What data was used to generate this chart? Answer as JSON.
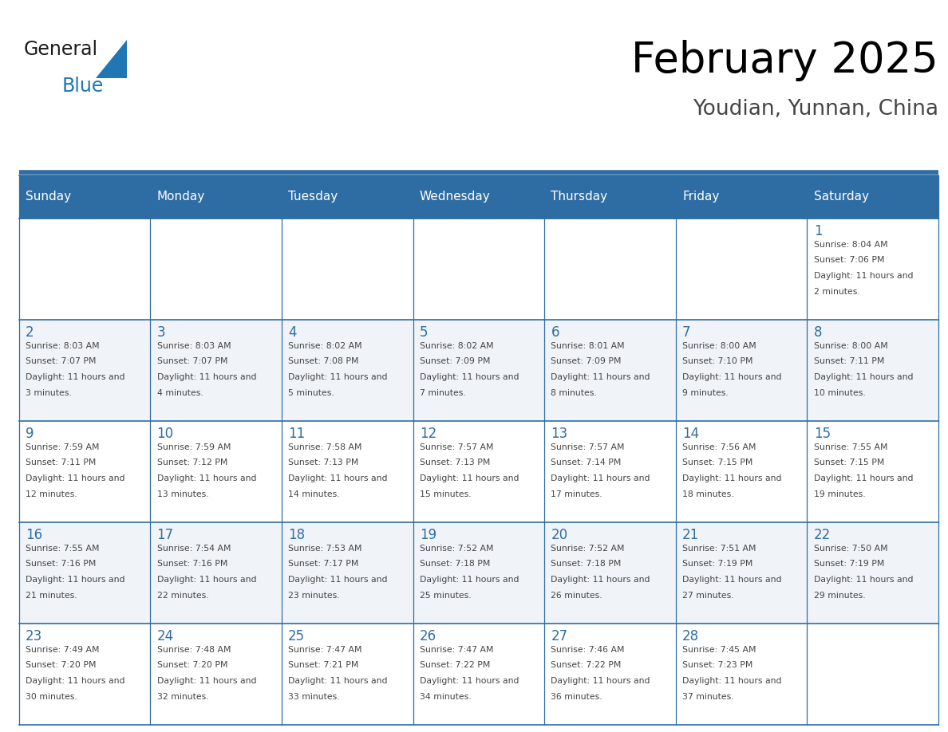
{
  "title": "February 2025",
  "subtitle": "Youdian, Yunnan, China",
  "days_of_week": [
    "Sunday",
    "Monday",
    "Tuesday",
    "Wednesday",
    "Thursday",
    "Friday",
    "Saturday"
  ],
  "header_bg": "#2E6DA4",
  "header_text": "#FFFFFF",
  "cell_bg_even": "#FFFFFF",
  "cell_bg_odd": "#F0F4F8",
  "border_color": "#2E6DA4",
  "title_color": "#000000",
  "subtitle_color": "#444444",
  "day_num_color": "#2E6DA4",
  "cell_text_color": "#444444",
  "logo_general_color": "#1a1a1a",
  "logo_blue_color": "#2077B4",
  "calendar_data": [
    [
      null,
      null,
      null,
      null,
      null,
      null,
      {
        "day": 1,
        "sunrise": "8:04 AM",
        "sunset": "7:06 PM",
        "daylight": "11 hours and 2 minutes."
      }
    ],
    [
      {
        "day": 2,
        "sunrise": "8:03 AM",
        "sunset": "7:07 PM",
        "daylight": "11 hours and 3 minutes."
      },
      {
        "day": 3,
        "sunrise": "8:03 AM",
        "sunset": "7:07 PM",
        "daylight": "11 hours and 4 minutes."
      },
      {
        "day": 4,
        "sunrise": "8:02 AM",
        "sunset": "7:08 PM",
        "daylight": "11 hours and 5 minutes."
      },
      {
        "day": 5,
        "sunrise": "8:02 AM",
        "sunset": "7:09 PM",
        "daylight": "11 hours and 7 minutes."
      },
      {
        "day": 6,
        "sunrise": "8:01 AM",
        "sunset": "7:09 PM",
        "daylight": "11 hours and 8 minutes."
      },
      {
        "day": 7,
        "sunrise": "8:00 AM",
        "sunset": "7:10 PM",
        "daylight": "11 hours and 9 minutes."
      },
      {
        "day": 8,
        "sunrise": "8:00 AM",
        "sunset": "7:11 PM",
        "daylight": "11 hours and 10 minutes."
      }
    ],
    [
      {
        "day": 9,
        "sunrise": "7:59 AM",
        "sunset": "7:11 PM",
        "daylight": "11 hours and 12 minutes."
      },
      {
        "day": 10,
        "sunrise": "7:59 AM",
        "sunset": "7:12 PM",
        "daylight": "11 hours and 13 minutes."
      },
      {
        "day": 11,
        "sunrise": "7:58 AM",
        "sunset": "7:13 PM",
        "daylight": "11 hours and 14 minutes."
      },
      {
        "day": 12,
        "sunrise": "7:57 AM",
        "sunset": "7:13 PM",
        "daylight": "11 hours and 15 minutes."
      },
      {
        "day": 13,
        "sunrise": "7:57 AM",
        "sunset": "7:14 PM",
        "daylight": "11 hours and 17 minutes."
      },
      {
        "day": 14,
        "sunrise": "7:56 AM",
        "sunset": "7:15 PM",
        "daylight": "11 hours and 18 minutes."
      },
      {
        "day": 15,
        "sunrise": "7:55 AM",
        "sunset": "7:15 PM",
        "daylight": "11 hours and 19 minutes."
      }
    ],
    [
      {
        "day": 16,
        "sunrise": "7:55 AM",
        "sunset": "7:16 PM",
        "daylight": "11 hours and 21 minutes."
      },
      {
        "day": 17,
        "sunrise": "7:54 AM",
        "sunset": "7:16 PM",
        "daylight": "11 hours and 22 minutes."
      },
      {
        "day": 18,
        "sunrise": "7:53 AM",
        "sunset": "7:17 PM",
        "daylight": "11 hours and 23 minutes."
      },
      {
        "day": 19,
        "sunrise": "7:52 AM",
        "sunset": "7:18 PM",
        "daylight": "11 hours and 25 minutes."
      },
      {
        "day": 20,
        "sunrise": "7:52 AM",
        "sunset": "7:18 PM",
        "daylight": "11 hours and 26 minutes."
      },
      {
        "day": 21,
        "sunrise": "7:51 AM",
        "sunset": "7:19 PM",
        "daylight": "11 hours and 27 minutes."
      },
      {
        "day": 22,
        "sunrise": "7:50 AM",
        "sunset": "7:19 PM",
        "daylight": "11 hours and 29 minutes."
      }
    ],
    [
      {
        "day": 23,
        "sunrise": "7:49 AM",
        "sunset": "7:20 PM",
        "daylight": "11 hours and 30 minutes."
      },
      {
        "day": 24,
        "sunrise": "7:48 AM",
        "sunset": "7:20 PM",
        "daylight": "11 hours and 32 minutes."
      },
      {
        "day": 25,
        "sunrise": "7:47 AM",
        "sunset": "7:21 PM",
        "daylight": "11 hours and 33 minutes."
      },
      {
        "day": 26,
        "sunrise": "7:47 AM",
        "sunset": "7:22 PM",
        "daylight": "11 hours and 34 minutes."
      },
      {
        "day": 27,
        "sunrise": "7:46 AM",
        "sunset": "7:22 PM",
        "daylight": "11 hours and 36 minutes."
      },
      {
        "day": 28,
        "sunrise": "7:45 AM",
        "sunset": "7:23 PM",
        "daylight": "11 hours and 37 minutes."
      },
      null
    ]
  ]
}
